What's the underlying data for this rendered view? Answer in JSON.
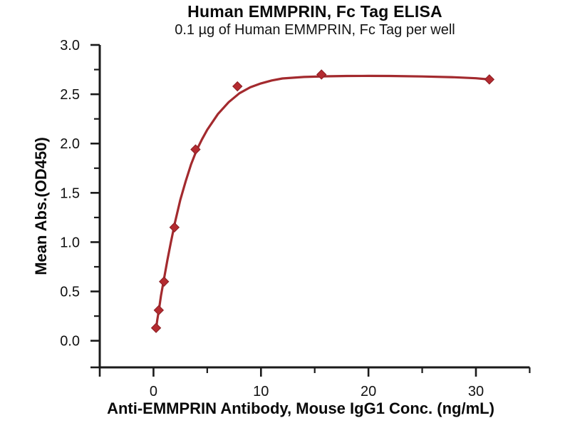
{
  "colors": {
    "background": "#ffffff",
    "axis": "#1a1a1a",
    "tick_text": "#111111",
    "curve": "#a32a2e",
    "marker_fill": "#b42b30",
    "marker_edge": "#8a1e23"
  },
  "chart_data": {
    "type": "scatter",
    "title": "Human EMMPRIN, Fc Tag ELISA",
    "subtitle": "0.1 µg of Human EMMPRIN, Fc Tag per well",
    "xlabel": "Anti-EMMPRIN Antibody, Mouse IgG1 Conc. (ng/mL)",
    "ylabel": "Mean Abs.(OD450)",
    "xlim": [
      -5,
      35
    ],
    "ylim": [
      -0.27,
      3.0
    ],
    "grid": false,
    "legend": false,
    "x_major_ticks": [
      0,
      10,
      20,
      30
    ],
    "x_minor_ticks": [
      5,
      15,
      25,
      35
    ],
    "y_major_ticks": [
      0.0,
      0.5,
      1.0,
      1.5,
      2.0,
      2.5,
      3.0
    ],
    "y_minor_ticks": [
      0.25,
      0.75,
      1.25,
      1.75,
      2.25,
      2.75
    ],
    "points": {
      "x": [
        0.24,
        0.49,
        0.98,
        1.95,
        3.91,
        7.81,
        15.63,
        31.25
      ],
      "y": [
        0.13,
        0.31,
        0.6,
        1.15,
        1.94,
        2.58,
        2.7,
        2.65
      ]
    },
    "fit_curve": [
      [
        0.22,
        0.1
      ],
      [
        0.35,
        0.21
      ],
      [
        0.5,
        0.31
      ],
      [
        0.7,
        0.46
      ],
      [
        1.0,
        0.64
      ],
      [
        1.3,
        0.82
      ],
      [
        1.6,
        0.99
      ],
      [
        2.0,
        1.2
      ],
      [
        2.5,
        1.43
      ],
      [
        3.0,
        1.62
      ],
      [
        3.5,
        1.79
      ],
      [
        4.0,
        1.93
      ],
      [
        4.5,
        2.04
      ],
      [
        5.0,
        2.14
      ],
      [
        6.0,
        2.3
      ],
      [
        7.0,
        2.42
      ],
      [
        8.0,
        2.51
      ],
      [
        9.0,
        2.57
      ],
      [
        10,
        2.61
      ],
      [
        11,
        2.64
      ],
      [
        12,
        2.66
      ],
      [
        14,
        2.675
      ],
      [
        16,
        2.682
      ],
      [
        18,
        2.685
      ],
      [
        20,
        2.686
      ],
      [
        22,
        2.685
      ],
      [
        25,
        2.68
      ],
      [
        28,
        2.672
      ],
      [
        30,
        2.662
      ],
      [
        31.25,
        2.65
      ]
    ]
  }
}
